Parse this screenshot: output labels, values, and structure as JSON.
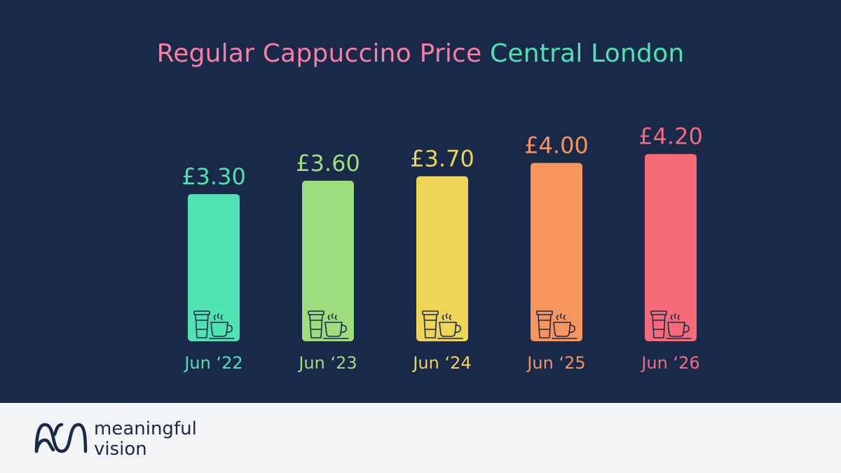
{
  "title": {
    "part1": "Regular Cappuccino Price",
    "part2": "Central London",
    "part1_color": "#f77fa2",
    "part2_color": "#4ee3b1"
  },
  "colors": {
    "background": "#18294a",
    "footer_background": "#f3f4f5",
    "icon_stroke": "#18294a"
  },
  "chart_data": {
    "type": "bar",
    "title": "Regular Cappuccino Price Central London",
    "categories": [
      "Jun ‘22",
      "Jun ‘23",
      "Jun ‘24",
      "Jun ‘25",
      "Jun ‘26"
    ],
    "values": [
      3.3,
      3.6,
      3.7,
      4.0,
      4.2
    ],
    "value_labels": [
      "£3.30",
      "£3.60",
      "£3.70",
      "£4.00",
      "£4.20"
    ],
    "bar_colors": [
      "#4ee3b1",
      "#9ddd7e",
      "#eed457",
      "#f6955e",
      "#f56b77"
    ],
    "icon": "coffee-cups-icon",
    "xlabel": "",
    "ylabel": "",
    "grid": false,
    "legend": "none"
  },
  "footer": {
    "logo_line1": "meaningful",
    "logo_line2": "vision",
    "logo_icon": "wave-logo-icon"
  }
}
